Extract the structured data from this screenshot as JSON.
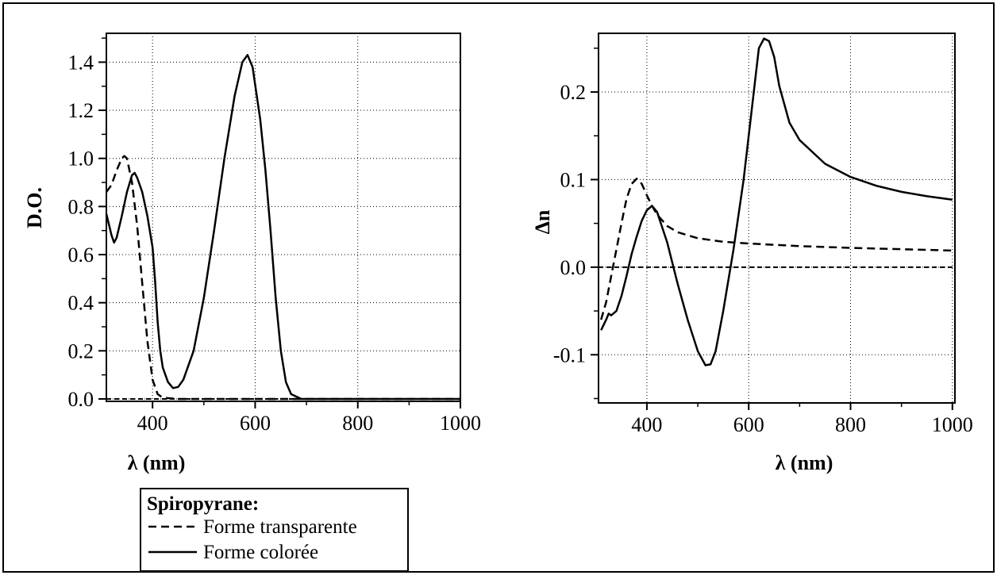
{
  "legend": {
    "title": "Spiropyrane:",
    "entries": [
      {
        "label": "Forme transparente",
        "style": "dashed"
      },
      {
        "label": "Forme colorée",
        "style": "solid"
      }
    ]
  },
  "chart_data": [
    {
      "type": "line",
      "xlabel": "λ (nm)",
      "ylabel": "D.O.",
      "xlim": [
        310,
        1000
      ],
      "ylim": [
        -0.01,
        1.52
      ],
      "xticks": [
        400,
        600,
        800,
        1000
      ],
      "xtick_labels": [
        "400",
        "600",
        "800",
        "1000"
      ],
      "yticks": [
        0,
        0.2,
        0.4,
        0.6,
        0.8,
        1.0,
        1.2,
        1.4
      ],
      "ytick_labels": [
        "0.0",
        "0.2",
        "0.4",
        "0.6",
        "0.8",
        "1.0",
        "1.2",
        "1.4"
      ],
      "grid": true,
      "series": [
        {
          "style": "dashed",
          "points": [
            [
              310,
              0.86
            ],
            [
              320,
              0.89
            ],
            [
              330,
              0.95
            ],
            [
              340,
              1.0
            ],
            [
              345,
              1.01
            ],
            [
              350,
              1.0
            ],
            [
              360,
              0.9
            ],
            [
              370,
              0.72
            ],
            [
              380,
              0.48
            ],
            [
              390,
              0.24
            ],
            [
              400,
              0.08
            ],
            [
              410,
              0.02
            ],
            [
              420,
              0.005
            ],
            [
              450,
              0.0
            ],
            [
              500,
              0.0
            ],
            [
              600,
              0.0
            ],
            [
              700,
              0.0
            ],
            [
              800,
              0.0
            ],
            [
              1000,
              0.0
            ]
          ]
        },
        {
          "style": "solid",
          "points": [
            [
              310,
              0.77
            ],
            [
              320,
              0.68
            ],
            [
              325,
              0.65
            ],
            [
              330,
              0.67
            ],
            [
              340,
              0.76
            ],
            [
              350,
              0.86
            ],
            [
              360,
              0.93
            ],
            [
              365,
              0.94
            ],
            [
              370,
              0.92
            ],
            [
              380,
              0.86
            ],
            [
              390,
              0.76
            ],
            [
              400,
              0.63
            ],
            [
              405,
              0.49
            ],
            [
              410,
              0.32
            ],
            [
              415,
              0.2
            ],
            [
              420,
              0.13
            ],
            [
              430,
              0.07
            ],
            [
              440,
              0.045
            ],
            [
              450,
              0.05
            ],
            [
              460,
              0.08
            ],
            [
              480,
              0.2
            ],
            [
              500,
              0.42
            ],
            [
              520,
              0.7
            ],
            [
              540,
              1.0
            ],
            [
              560,
              1.26
            ],
            [
              575,
              1.4
            ],
            [
              585,
              1.43
            ],
            [
              595,
              1.38
            ],
            [
              610,
              1.16
            ],
            [
              620,
              0.95
            ],
            [
              630,
              0.7
            ],
            [
              640,
              0.42
            ],
            [
              650,
              0.2
            ],
            [
              660,
              0.07
            ],
            [
              670,
              0.02
            ],
            [
              690,
              0.0
            ],
            [
              700,
              0.0
            ],
            [
              800,
              0.0
            ],
            [
              1000,
              0.0
            ]
          ]
        }
      ]
    },
    {
      "type": "line",
      "xlabel": "λ (nm)",
      "ylabel": "Δn",
      "xlim": [
        305,
        1005
      ],
      "ylim": [
        -0.155,
        0.267
      ],
      "xticks": [
        400,
        600,
        800,
        1000
      ],
      "xtick_labels": [
        "400",
        "600",
        "800",
        "1000"
      ],
      "yticks": [
        -0.1,
        0.0,
        0.1,
        0.2
      ],
      "ytick_labels": [
        "-0.1",
        "0.0",
        "0.1",
        "0.2"
      ],
      "grid": true,
      "series": [
        {
          "style": "dashed",
          "points": [
            [
              310,
              -0.06
            ],
            [
              320,
              -0.04
            ],
            [
              330,
              -0.01
            ],
            [
              340,
              0.02
            ],
            [
              350,
              0.05
            ],
            [
              360,
              0.078
            ],
            [
              370,
              0.095
            ],
            [
              380,
              0.101
            ],
            [
              390,
              0.095
            ],
            [
              400,
              0.082
            ],
            [
              410,
              0.07
            ],
            [
              420,
              0.06
            ],
            [
              440,
              0.047
            ],
            [
              460,
              0.04
            ],
            [
              500,
              0.033
            ],
            [
              550,
              0.029
            ],
            [
              600,
              0.027
            ],
            [
              700,
              0.024
            ],
            [
              800,
              0.022
            ],
            [
              1000,
              0.019
            ]
          ]
        },
        {
          "style": "solid",
          "points": [
            [
              310,
              -0.072
            ],
            [
              320,
              -0.06
            ],
            [
              325,
              -0.053
            ],
            [
              330,
              -0.055
            ],
            [
              340,
              -0.05
            ],
            [
              350,
              -0.033
            ],
            [
              360,
              -0.01
            ],
            [
              370,
              0.015
            ],
            [
              380,
              0.035
            ],
            [
              390,
              0.053
            ],
            [
              400,
              0.065
            ],
            [
              410,
              0.07
            ],
            [
              420,
              0.063
            ],
            [
              440,
              0.028
            ],
            [
              460,
              -0.018
            ],
            [
              480,
              -0.06
            ],
            [
              500,
              -0.096
            ],
            [
              515,
              -0.112
            ],
            [
              525,
              -0.111
            ],
            [
              535,
              -0.096
            ],
            [
              550,
              -0.05
            ],
            [
              570,
              0.02
            ],
            [
              590,
              0.1
            ],
            [
              610,
              0.2
            ],
            [
              620,
              0.25
            ],
            [
              630,
              0.261
            ],
            [
              640,
              0.258
            ],
            [
              650,
              0.24
            ],
            [
              660,
              0.207
            ],
            [
              680,
              0.165
            ],
            [
              700,
              0.145
            ],
            [
              750,
              0.118
            ],
            [
              800,
              0.103
            ],
            [
              850,
              0.093
            ],
            [
              900,
              0.086
            ],
            [
              950,
              0.081
            ],
            [
              1000,
              0.077
            ]
          ]
        }
      ]
    }
  ]
}
